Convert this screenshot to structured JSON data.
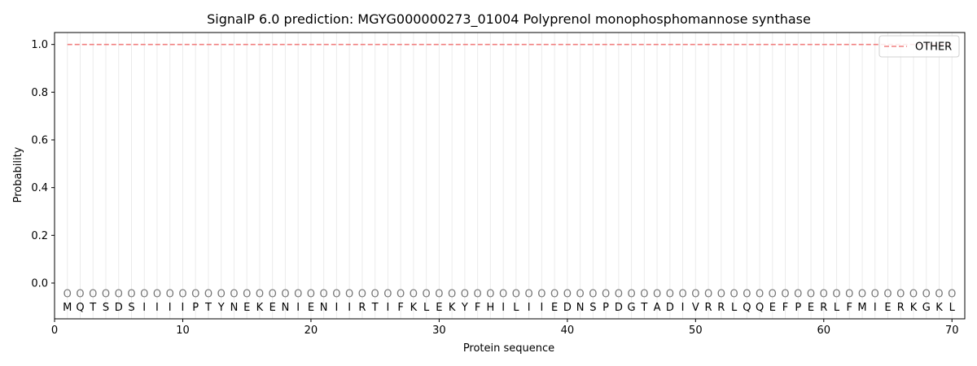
{
  "chart_data": {
    "type": "line",
    "title": "SignalP 6.0 prediction: MGYG000000273_01004 Polyprenol monophosphomannose synthase",
    "xlabel": "Protein sequence",
    "ylabel": "Probability",
    "xlim": [
      0,
      71
    ],
    "ylim": [
      -0.15,
      1.05
    ],
    "xticks": [
      0,
      10,
      20,
      30,
      40,
      50,
      60,
      70
    ],
    "yticks": [
      0.0,
      0.2,
      0.4,
      0.6,
      0.8,
      1.0
    ],
    "ytick_labels": [
      "0.0",
      "0.2",
      "0.4",
      "0.6",
      "0.8",
      "1.0"
    ],
    "grid": "vertical lines at each residue",
    "legend_position": "top-right",
    "sequence": [
      "M",
      "Q",
      "T",
      "S",
      "D",
      "S",
      "I",
      "I",
      "I",
      "I",
      "P",
      "T",
      "Y",
      "N",
      "E",
      "K",
      "E",
      "N",
      "I",
      "E",
      "N",
      "I",
      "I",
      "R",
      "T",
      "I",
      "F",
      "K",
      "L",
      "E",
      "K",
      "Y",
      "F",
      "H",
      "I",
      "L",
      "I",
      "I",
      "E",
      "D",
      "N",
      "S",
      "P",
      "D",
      "G",
      "T",
      "A",
      "D",
      "I",
      "V",
      "R",
      "R",
      "L",
      "Q",
      "Q",
      "E",
      "F",
      "P",
      "E",
      "R",
      "L",
      "F",
      "M",
      "I",
      "E",
      "R",
      "K",
      "G",
      "K",
      "L"
    ],
    "predicted_label": "O",
    "predicted_marker_y": -0.045,
    "series": [
      {
        "name": "OTHER",
        "color": "#f08080",
        "style": "dashed",
        "x_start": 1,
        "x_end": 70,
        "value": 1.0
      }
    ]
  }
}
